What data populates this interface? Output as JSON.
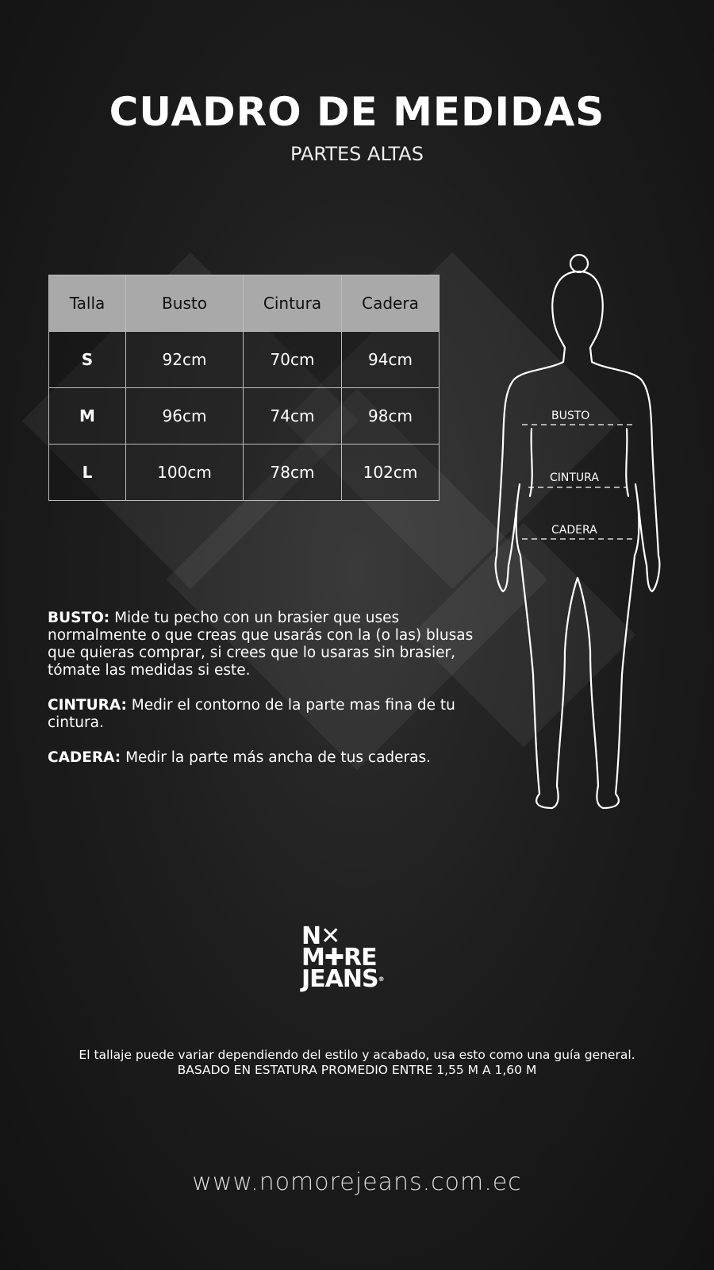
{
  "header": {
    "title": "CUADRO DE MEDIDAS",
    "subtitle": "PARTES ALTAS"
  },
  "table": {
    "columns": [
      "Talla",
      "Busto",
      "Cintura",
      "Cadera"
    ],
    "rows": [
      [
        "S",
        "92cm",
        "70cm",
        "94cm"
      ],
      [
        "M",
        "96cm",
        "74cm",
        "98cm"
      ],
      [
        "L",
        "100cm",
        "78cm",
        "102cm"
      ]
    ]
  },
  "figure": {
    "labels": {
      "bust": "BUSTO",
      "waist": "CINTURA",
      "hip": "CADERA"
    }
  },
  "descriptions": [
    {
      "term": "BUSTO:",
      "text": " Mide tu pecho con un brasier que uses normalmente o que creas que usarás con la (o las) blusas que quieras comprar, si crees que lo usaras sin brasier, tómate las medidas si este."
    },
    {
      "term": "CINTURA:",
      "text": " Medir el contorno de la parte mas fina de tu cintura."
    },
    {
      "term": "CADERA:",
      "text": " Medir la parte más ancha de tus caderas."
    }
  ],
  "logo": {
    "line1": "N✕",
    "line2": "M✚RE",
    "line3": "JEANS",
    "mark": "®"
  },
  "footer": {
    "note": "El tallaje puede variar dependiendo del estilo y acabado, usa esto como una guía general.",
    "height_note": "BASADO EN ESTATURA PROMEDIO ENTRE 1,55 M A 1,60 M",
    "url": "www.nomorejeans.com.ec"
  }
}
